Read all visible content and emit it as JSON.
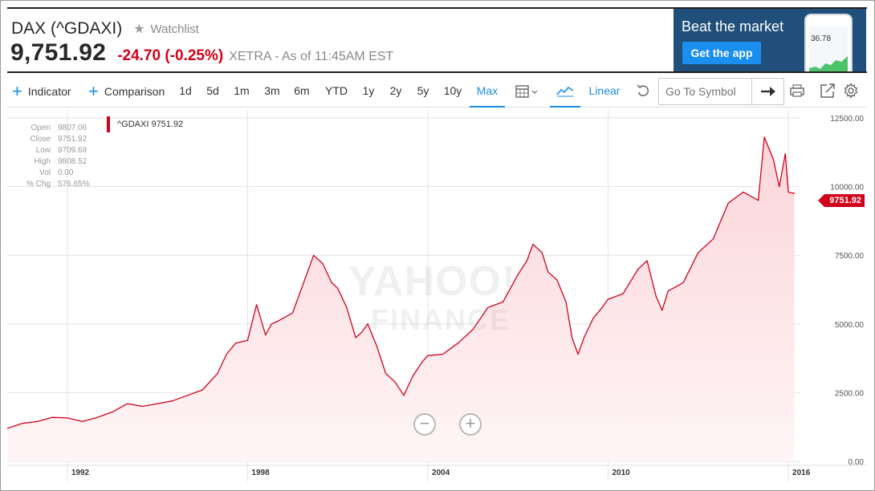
{
  "quote": {
    "title": "DAX (^GDAXI)",
    "watchlist_label": "Watchlist",
    "price": "9,751.92",
    "change": "-24.70 (-0.25%)",
    "exchange_info": "XETRA - As of 11:45AM EST"
  },
  "ad": {
    "title": "Beat the market",
    "button": "Get the app",
    "phone_value": "36.78"
  },
  "toolbar": {
    "indicator": "Indicator",
    "comparison": "Comparison",
    "ranges": [
      "1d",
      "5d",
      "1m",
      "3m",
      "6m",
      "YTD",
      "1y",
      "2y",
      "5y",
      "10y",
      "Max"
    ],
    "active_range": "Max",
    "scale": "Linear",
    "symbol_placeholder": "Go To Symbol"
  },
  "ohlc": [
    {
      "label": "Open",
      "value": "9807.06"
    },
    {
      "label": "Close",
      "value": "9751.92"
    },
    {
      "label": "Low",
      "value": "9709.68"
    },
    {
      "label": "High",
      "value": "9808.52"
    },
    {
      "label": "Vol",
      "value": "0.00"
    },
    {
      "label": "% Chg",
      "value": "576.65%"
    }
  ],
  "legend": "^GDAXI 9751.92",
  "last_price_tag": "9751.92",
  "watermark": {
    "line1": "YAHOO!",
    "line2": "FINANCE"
  },
  "colors": {
    "line": "#d0021b",
    "accent": "#1d8ee8",
    "fill": "#fde7e9"
  },
  "chart_data": {
    "type": "area",
    "series": [
      {
        "name": "^GDAXI",
        "x": [
          1990.0,
          1990.5,
          1991.0,
          1991.5,
          1992.0,
          1992.5,
          1993.0,
          1993.5,
          1994.0,
          1994.5,
          1995.0,
          1995.5,
          1996.0,
          1996.5,
          1997.0,
          1997.3,
          1997.6,
          1998.0,
          1998.3,
          1998.6,
          1998.8,
          1999.0,
          1999.5,
          2000.0,
          2000.2,
          2000.5,
          2000.8,
          2001.0,
          2001.3,
          2001.6,
          2001.8,
          2002.0,
          2002.3,
          2002.6,
          2002.9,
          2003.2,
          2003.5,
          2003.8,
          2004.0,
          2004.5,
          2005.0,
          2005.5,
          2006.0,
          2006.5,
          2007.0,
          2007.3,
          2007.5,
          2007.8,
          2008.0,
          2008.3,
          2008.6,
          2008.8,
          2009.0,
          2009.2,
          2009.5,
          2009.8,
          2010.0,
          2010.5,
          2011.0,
          2011.3,
          2011.6,
          2011.8,
          2012.0,
          2012.5,
          2013.0,
          2013.5,
          2014.0,
          2014.5,
          2015.0,
          2015.2,
          2015.5,
          2015.7,
          2015.9,
          2016.0,
          2016.2
        ],
        "values": [
          1200,
          1380,
          1450,
          1600,
          1580,
          1450,
          1600,
          1800,
          2100,
          2000,
          2100,
          2200,
          2400,
          2600,
          3200,
          3900,
          4300,
          4400,
          5700,
          4600,
          5000,
          5100,
          5400,
          6900,
          7500,
          7200,
          6500,
          6300,
          5600,
          4500,
          4700,
          5000,
          4200,
          3200,
          2900,
          2400,
          3100,
          3600,
          3850,
          3900,
          4300,
          4800,
          5600,
          5800,
          6800,
          7300,
          7900,
          7600,
          6900,
          6600,
          5800,
          4500,
          3900,
          4500,
          5200,
          5600,
          5900,
          6100,
          7000,
          7300,
          6000,
          5500,
          6200,
          6500,
          7600,
          8100,
          9400,
          9800,
          9500,
          11800,
          11000,
          10000,
          11200,
          9800,
          9751.92
        ]
      }
    ],
    "xlim": [
      1990,
      2016.4
    ],
    "ylim": [
      0,
      12500
    ],
    "y_ticks": [
      0,
      2500,
      5000,
      7500,
      10000,
      12500
    ],
    "y_tick_labels": [
      "0.00",
      "2500.00",
      "5000.00",
      "7500.00",
      "10000.00",
      "12500.00"
    ],
    "x_ticks": [
      1992,
      1998,
      2004,
      2010,
      2016
    ],
    "x_tick_labels": [
      "1992",
      "1998",
      "2004",
      "2010",
      "2016"
    ],
    "grid": true
  }
}
